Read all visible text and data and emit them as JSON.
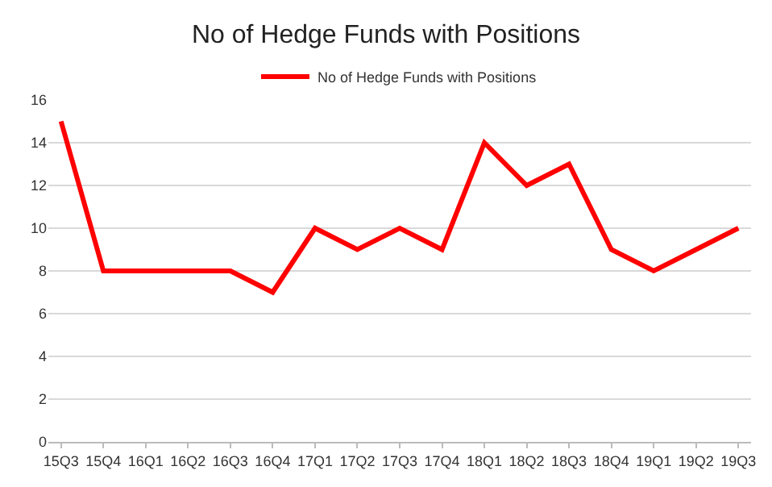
{
  "chart_data": {
    "type": "line",
    "title": "No of Hedge Funds with Positions",
    "categories": [
      "15Q3",
      "15Q4",
      "16Q1",
      "16Q2",
      "16Q3",
      "16Q4",
      "17Q1",
      "17Q2",
      "17Q3",
      "17Q4",
      "18Q1",
      "18Q2",
      "18Q3",
      "18Q4",
      "19Q1",
      "19Q2",
      "19Q3"
    ],
    "series": [
      {
        "name": "No of Hedge Funds with Positions",
        "color": "#ff0000",
        "values": [
          15,
          8,
          8,
          8,
          8,
          7,
          10,
          9,
          10,
          9,
          14,
          12,
          13,
          9,
          8,
          9,
          10
        ]
      }
    ],
    "ylim": [
      0,
      16
    ],
    "yticks": [
      0,
      2,
      4,
      6,
      8,
      10,
      12,
      14,
      16
    ],
    "grid": "y",
    "legend": "top",
    "marker": "none",
    "line_style": "solid"
  }
}
